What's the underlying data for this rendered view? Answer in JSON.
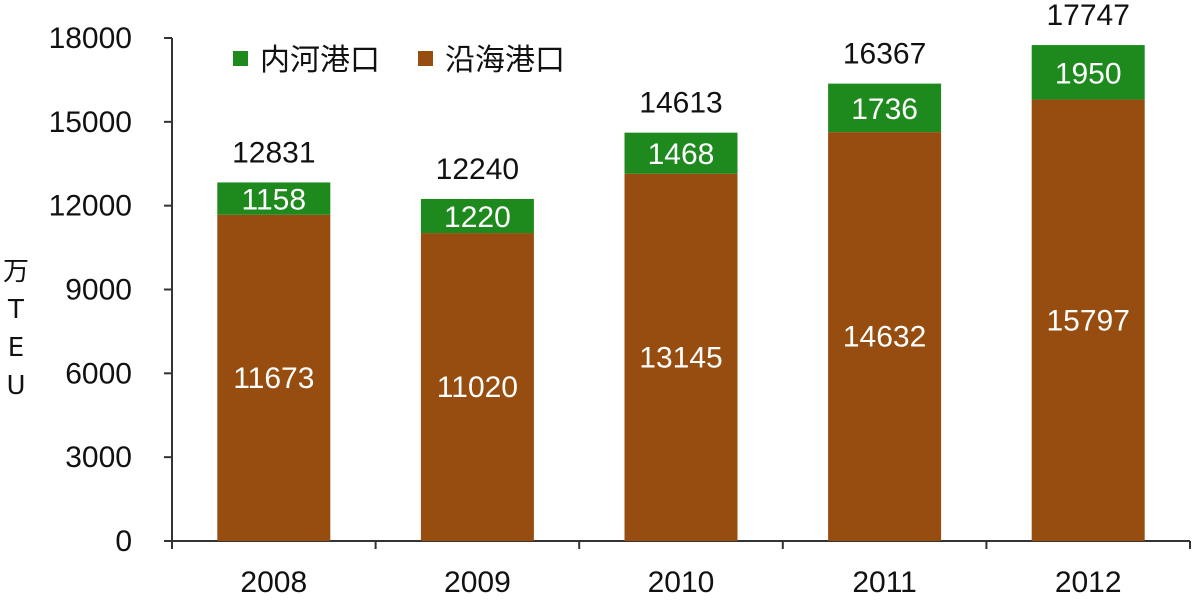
{
  "chart_data": {
    "type": "bar",
    "stacked": true,
    "categories": [
      "2008",
      "2009",
      "2010",
      "2011",
      "2012"
    ],
    "series": [
      {
        "name": "沿海港口",
        "color": "#974d0f",
        "values": [
          11673,
          11020,
          13145,
          14632,
          15797
        ]
      },
      {
        "name": "内河港口",
        "color": "#1e8a1e",
        "values": [
          1158,
          1220,
          1468,
          1736,
          1950
        ]
      }
    ],
    "totals": [
      12831,
      12240,
      14613,
      16367,
      17747
    ],
    "ylabel": "万TEU",
    "ylabel_chars": [
      "万",
      "T",
      "E",
      "U"
    ],
    "ylim": [
      0,
      18000
    ],
    "yticks": [
      "0",
      "3000",
      "6000",
      "9000",
      "12000",
      "15000",
      "18000"
    ],
    "legend_position": "top-left",
    "legend_order": [
      1,
      0
    ],
    "grid": false
  }
}
